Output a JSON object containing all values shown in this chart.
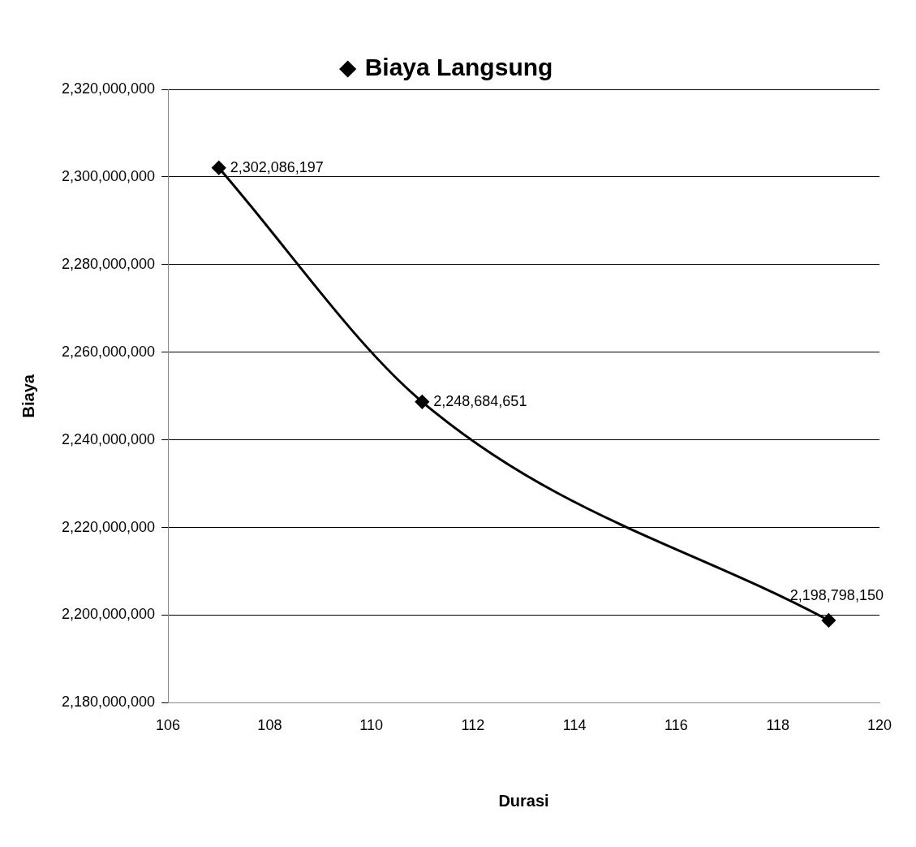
{
  "chart_data": {
    "type": "line",
    "xlabel": "Durasi",
    "ylabel": "Biaya",
    "x": [
      107,
      111,
      119
    ],
    "series": [
      {
        "name": "Biaya Langsung",
        "color": "#000000",
        "values": [
          2302086197,
          2248684651,
          2198798150
        ],
        "value_labels": [
          "2,302,086,197",
          "2,248,684,651",
          "2,198,798,150"
        ]
      }
    ],
    "xlim": [
      106,
      120
    ],
    "xticks": [
      106,
      108,
      110,
      112,
      114,
      116,
      118,
      120
    ],
    "ylim": [
      2180000000,
      2320000000
    ],
    "yticks": [
      {
        "value": 2180000000,
        "label": "2,180,000,000"
      },
      {
        "value": 2200000000,
        "label": "2,200,000,000"
      },
      {
        "value": 2220000000,
        "label": "2,220,000,000"
      },
      {
        "value": 2240000000,
        "label": "2,240,000,000"
      },
      {
        "value": 2260000000,
        "label": "2,260,000,000"
      },
      {
        "value": 2280000000,
        "label": "2,280,000,000"
      },
      {
        "value": 2300000000,
        "label": "2,300,000,000"
      },
      {
        "value": 2320000000,
        "label": "2,320,000,000"
      }
    ],
    "grid": "y",
    "legend": "top",
    "marker": "diamond",
    "line_style": "solid"
  }
}
